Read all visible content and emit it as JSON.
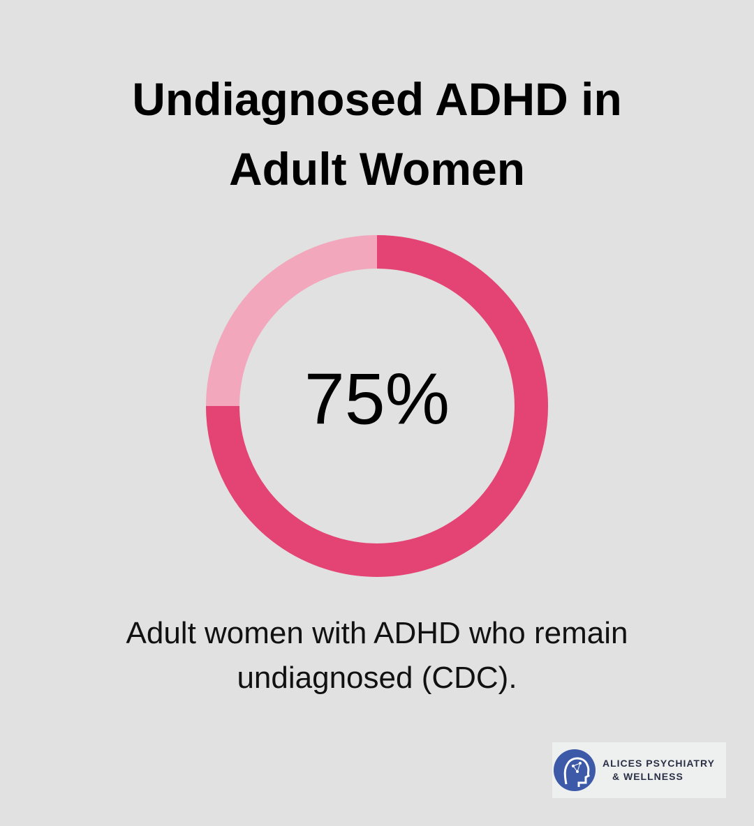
{
  "chart_data": {
    "type": "donut",
    "title": "Undiagnosed ADHD in Adult Women",
    "values": [
      75
    ],
    "value_labels": [
      "75%"
    ],
    "color": "#e34474",
    "track_color": "#f2a7bd",
    "caption": "Adult women with ADHD who remain undiagnosed (CDC)."
  },
  "logo": {
    "lines": [
      "ALICES PSYCHIATRY",
      "& WELLNESS"
    ]
  }
}
